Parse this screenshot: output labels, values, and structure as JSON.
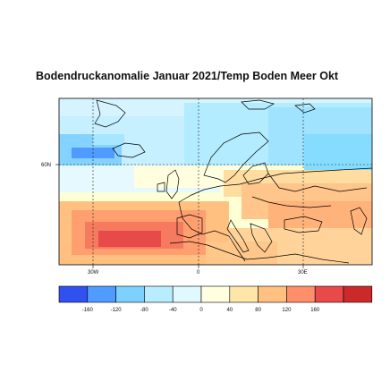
{
  "title": "Bodendruckanomalie Januar 2021/Temp Boden Meer Okt",
  "map": {
    "lat_labels": [
      "60N"
    ],
    "lon_labels": [
      "30W",
      "0",
      "30E"
    ]
  },
  "legend": {
    "ticks": [
      "-160",
      "-120",
      "-80",
      "-40",
      "0",
      "40",
      "80",
      "120",
      "160"
    ],
    "colors": [
      "#3050f0",
      "#4f9bff",
      "#7ed0ff",
      "#b8ecff",
      "#e0f8ff",
      "#ffffe0",
      "#ffe6a8",
      "#ffc080",
      "#ff8f6a",
      "#e84a4a",
      "#cc2a2a"
    ]
  }
}
